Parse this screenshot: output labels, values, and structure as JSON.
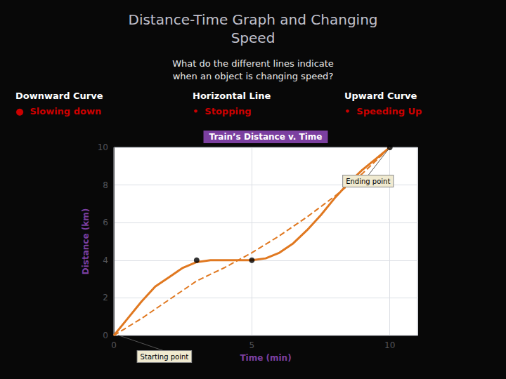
{
  "chart_data": {
    "type": "line",
    "title": "Distance-Time Graph and Changing\nSpeed",
    "subtitle": "What do the different lines indicate\nwhen an object is changing speed?",
    "background": "#080808",
    "title_color": "#c0c0cc",
    "subtitle_color": "#e8e8e8",
    "plot_background": "#ffffff",
    "plot_title": {
      "text": "Train’s Distance v. Time",
      "color": "#7b3fa0"
    },
    "annotations": [
      {
        "text": "Downward Curve",
        "color": "#ffffff"
      },
      {
        "text": "●  Slowing down",
        "color": "#cc0000"
      },
      {
        "text": "Horizontal Line",
        "color": "#ffffff"
      },
      {
        "text": "•  Stopping",
        "color": "#cc0000"
      },
      {
        "text": "Upward Curve",
        "color": "#ffffff"
      },
      {
        "text": "•  Speeding Up",
        "color": "#cc0000"
      },
      {
        "text": "Starting point",
        "x": 0.15,
        "y": 0.02,
        "background": "#f0ead0"
      },
      {
        "text": "Ending point",
        "x": 10.0,
        "y": 10.0,
        "background": "#f0ead0"
      }
    ],
    "xlabel": "Time (min)",
    "ylabel": "Distance (km)",
    "axis_label_color": "#7b3fa0",
    "xlim": [
      0,
      11
    ],
    "ylim": [
      0,
      10
    ],
    "xticks": [
      0,
      5,
      10
    ],
    "yticks": [
      0,
      2,
      4,
      6,
      8,
      10
    ],
    "grid": true,
    "series": [
      {
        "type": "line",
        "line_style": "solid",
        "color": "#e07820",
        "x": [
          0,
          0.5,
          1.0,
          1.5,
          2.0,
          2.5,
          3.0,
          3.5,
          4.0,
          4.5,
          5.0,
          5.5,
          6.0,
          6.5,
          7.0,
          7.5,
          8.0,
          8.5,
          9.0,
          9.5,
          10.0
        ],
        "values": [
          0,
          0.9,
          1.8,
          2.6,
          3.1,
          3.6,
          3.9,
          4.0,
          4.0,
          4.0,
          4.0,
          4.1,
          4.4,
          4.9,
          5.6,
          6.4,
          7.3,
          8.1,
          8.8,
          9.4,
          10.0
        ]
      },
      {
        "type": "line",
        "line_style": "dashed",
        "color": "#e07820",
        "x": [
          0,
          1,
          2,
          3,
          4,
          5,
          6,
          7,
          8,
          9,
          10
        ],
        "values": [
          0,
          0.9,
          1.9,
          2.9,
          3.6,
          4.4,
          5.3,
          6.3,
          7.4,
          8.6,
          10.0
        ]
      },
      {
        "type": "scatter",
        "marker": "circle",
        "color": "#000000",
        "x": [
          3.0,
          5.0,
          10.0
        ],
        "values": [
          4.0,
          4.0,
          10.0
        ]
      }
    ]
  }
}
